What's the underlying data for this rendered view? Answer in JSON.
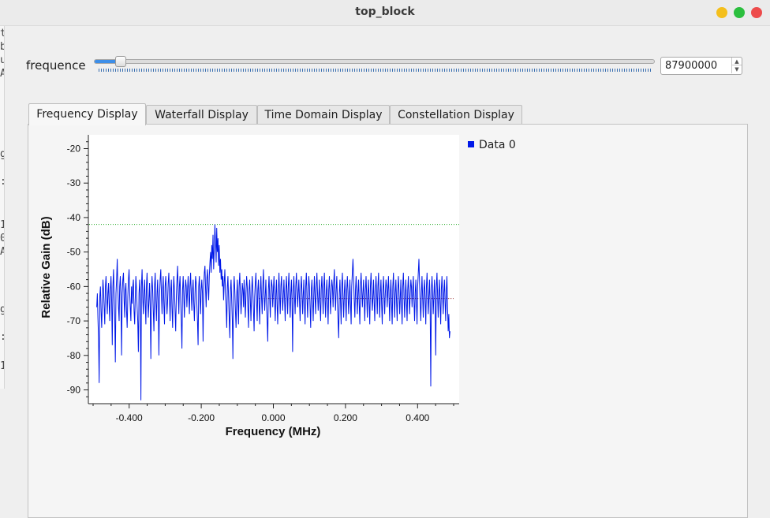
{
  "window": {
    "title": "top_block"
  },
  "left_strip_chars": [
    "t",
    "b",
    "u",
    "A",
    "g",
    ":",
    "1",
    "0",
    "A",
    "g",
    ":",
    "1"
  ],
  "controls": {
    "slider_label": "frequence",
    "slider_fraction": 0.04,
    "spin_value": "87900000"
  },
  "tabs": [
    {
      "label": "Frequency Display",
      "active": true
    },
    {
      "label": "Waterfall Display",
      "active": false
    },
    {
      "label": "Time Domain Display",
      "active": false
    },
    {
      "label": "Constellation Display",
      "active": false
    }
  ],
  "legend": {
    "label": "Data 0"
  },
  "colors": {
    "trace": "#0018e8",
    "accent": "#3d8ee8",
    "max_line": "#1aa51a",
    "avg_line": "#8b1a1a"
  },
  "chart_data": {
    "type": "line",
    "title": "",
    "xlabel": "Frequency (MHz)",
    "ylabel": "Relative Gain (dB)",
    "xlim": [
      -0.5,
      0.5
    ],
    "ylim": [
      -94,
      -16
    ],
    "x_ticks": [
      -0.4,
      -0.2,
      0.0,
      0.2,
      0.4
    ],
    "x_tick_labels": [
      "-0.400",
      "-0.200",
      "0.000",
      "0.200",
      "0.400"
    ],
    "y_ticks": [
      -20,
      -30,
      -40,
      -50,
      -60,
      -70,
      -80,
      -90
    ],
    "y_tick_labels": [
      "-20",
      "-30",
      "-40",
      "-50",
      "-60",
      "-70",
      "-80",
      "-90"
    ],
    "reference_lines": [
      {
        "kind": "max-hold",
        "y": -42,
        "style": "dotted",
        "color": "#1aa51a"
      },
      {
        "kind": "average",
        "y": -63.5,
        "style": "dotted",
        "color": "#8b1a1a"
      }
    ],
    "series": [
      {
        "name": "Data 0",
        "color": "#0018e8",
        "x_start": -0.49,
        "x_end": 0.49,
        "values": [
          -66,
          -62,
          -69,
          -75,
          -88,
          -63,
          -60,
          -67,
          -72,
          -64,
          -58,
          -61,
          -66,
          -71,
          -60,
          -57,
          -63,
          -68,
          -62,
          -59,
          -65,
          -70,
          -61,
          -57,
          -64,
          -77,
          -60,
          -55,
          -62,
          -68,
          -82,
          -62,
          -58,
          -52,
          -61,
          -66,
          -70,
          -60,
          -57,
          -63,
          -80,
          -62,
          -58,
          -56,
          -64,
          -69,
          -61,
          -59,
          -67,
          -72,
          -63,
          -58,
          -55,
          -62,
          -66,
          -70,
          -60,
          -65,
          -60,
          -58,
          -67,
          -71,
          -63,
          -57,
          -61,
          -66,
          -70,
          -79,
          -62,
          -58,
          -64,
          -93,
          -60,
          -55,
          -63,
          -68,
          -62,
          -58,
          -65,
          -71,
          -60,
          -56,
          -63,
          -69,
          -64,
          -59,
          -66,
          -81,
          -62,
          -57,
          -61,
          -67,
          -73,
          -60,
          -56,
          -64,
          -70,
          -62,
          -58,
          -65,
          -80,
          -63,
          -58,
          -55,
          -62,
          -68,
          -61,
          -57,
          -65,
          -71,
          -60,
          -57,
          -62,
          -68,
          -64,
          -59,
          -56,
          -63,
          -70,
          -61,
          -58,
          -66,
          -72,
          -62,
          -57,
          -61,
          -67,
          -73,
          -63,
          -58,
          -54,
          -62,
          -68,
          -60,
          -57,
          -64,
          -70,
          -78,
          -61,
          -57,
          -63,
          -69,
          -62,
          -58,
          -60,
          -66,
          -61,
          -57,
          -63,
          -68,
          -60,
          -56,
          -62,
          -67,
          -61,
          -58,
          -65,
          -70,
          -62,
          -57,
          -59,
          -65,
          -70,
          -77,
          -60,
          -57,
          -63,
          -68,
          -61,
          -58,
          -62,
          -76,
          -60,
          -56,
          -54,
          -61,
          -66,
          -58,
          -55,
          -60,
          -64,
          -57,
          -53,
          -50,
          -56,
          -48,
          -52,
          -45,
          -55,
          -49,
          -42,
          -47,
          -53,
          -43,
          -50,
          -46,
          -54,
          -48,
          -56,
          -52,
          -58,
          -55,
          -60,
          -57,
          -64,
          -59,
          -55,
          -62,
          -66,
          -72,
          -60,
          -57,
          -63,
          -69,
          -75,
          -61,
          -58,
          -64,
          -70,
          -81,
          -62,
          -57,
          -61,
          -67,
          -72,
          -63,
          -58,
          -65,
          -71,
          -60,
          -56,
          -62,
          -68,
          -64,
          -59,
          -61,
          -66,
          -58,
          -63,
          -69,
          -62,
          -57,
          -60,
          -66,
          -72,
          -61,
          -58,
          -64,
          -70,
          -62,
          -57,
          -61,
          -67,
          -73,
          -63,
          -59,
          -56,
          -64,
          -70,
          -61,
          -58,
          -65,
          -71,
          -62,
          -57,
          -63,
          -68,
          -60,
          -55,
          -62,
          -67,
          -63,
          -58,
          -65,
          -70,
          -76,
          -61,
          -57,
          -63,
          -69,
          -62,
          -58,
          -60,
          -66,
          -61,
          -57,
          -64,
          -70,
          -62,
          -58,
          -65,
          -71,
          -61,
          -56,
          -63,
          -68,
          -60,
          -57,
          -62,
          -67,
          -63,
          -58,
          -64,
          -70,
          -61,
          -57,
          -62,
          -68,
          -60,
          -56,
          -63,
          -69,
          -62,
          -58,
          -65,
          -79,
          -61,
          -57,
          -63,
          -68,
          -60,
          -56,
          -61,
          -66,
          -62,
          -58,
          -64,
          -70,
          -61,
          -57,
          -62,
          -68,
          -63,
          -58,
          -65,
          -71,
          -60,
          -56,
          -63,
          -69,
          -62,
          -57,
          -60,
          -66,
          -72,
          -61,
          -58,
          -64,
          -70,
          -62,
          -57,
          -63,
          -68,
          -60,
          -56,
          -62,
          -67,
          -63,
          -58,
          -65,
          -70,
          -61,
          -57,
          -62,
          -68,
          -60,
          -56,
          -63,
          -69,
          -62,
          -58,
          -64,
          -71,
          -61,
          -57,
          -63,
          -68,
          -62,
          -58,
          -60,
          -66,
          -59,
          -55,
          -62,
          -67,
          -61,
          -57,
          -64,
          -70,
          -75,
          -62,
          -58,
          -65,
          -71,
          -60,
          -56,
          -63,
          -69,
          -62,
          -58,
          -64,
          -70,
          -61,
          -57,
          -62,
          -68,
          -63,
          -58,
          -65,
          -71,
          -60,
          -56,
          -52,
          -58,
          -64,
          -69,
          -61,
          -57,
          -63,
          -68,
          -62,
          -58,
          -65,
          -71,
          -60,
          -56,
          -61,
          -66,
          -62,
          -58,
          -64,
          -70,
          -61,
          -57,
          -63,
          -69,
          -62,
          -58,
          -65,
          -71,
          -60,
          -56,
          -62,
          -67,
          -63,
          -58,
          -64,
          -70,
          -61,
          -57,
          -62,
          -68,
          -60,
          -56,
          -63,
          -69,
          -62,
          -58,
          -65,
          -71,
          -61,
          -57,
          -63,
          -68,
          -62,
          -58,
          -60,
          -66,
          -61,
          -57,
          -64,
          -70,
          -62,
          -58,
          -65,
          -71,
          -60,
          -56,
          -63,
          -69,
          -62,
          -58,
          -64,
          -70,
          -61,
          -57,
          -62,
          -68,
          -63,
          -58,
          -65,
          -71,
          -60,
          -56,
          -63,
          -69,
          -62,
          -58,
          -64,
          -70,
          -61,
          -57,
          -63,
          -68,
          -62,
          -58,
          -60,
          -66,
          -61,
          -57,
          -64,
          -70,
          -62,
          -58,
          -65,
          -71,
          -60,
          -56,
          -52,
          -59,
          -65,
          -70,
          -62,
          -57,
          -63,
          -69,
          -61,
          -58,
          -64,
          -71,
          -60,
          -56,
          -62,
          -68,
          -63,
          -58,
          -65,
          -89,
          -61,
          -57,
          -62,
          -68,
          -63,
          -58,
          -64,
          -80,
          -60,
          -56,
          -63,
          -69,
          -62,
          -58,
          -65,
          -71,
          -61,
          -57,
          -63,
          -68,
          -62,
          -58,
          -64,
          -70,
          -61,
          -57,
          -66,
          -73,
          -68,
          -75,
          -73
        ]
      }
    ]
  }
}
